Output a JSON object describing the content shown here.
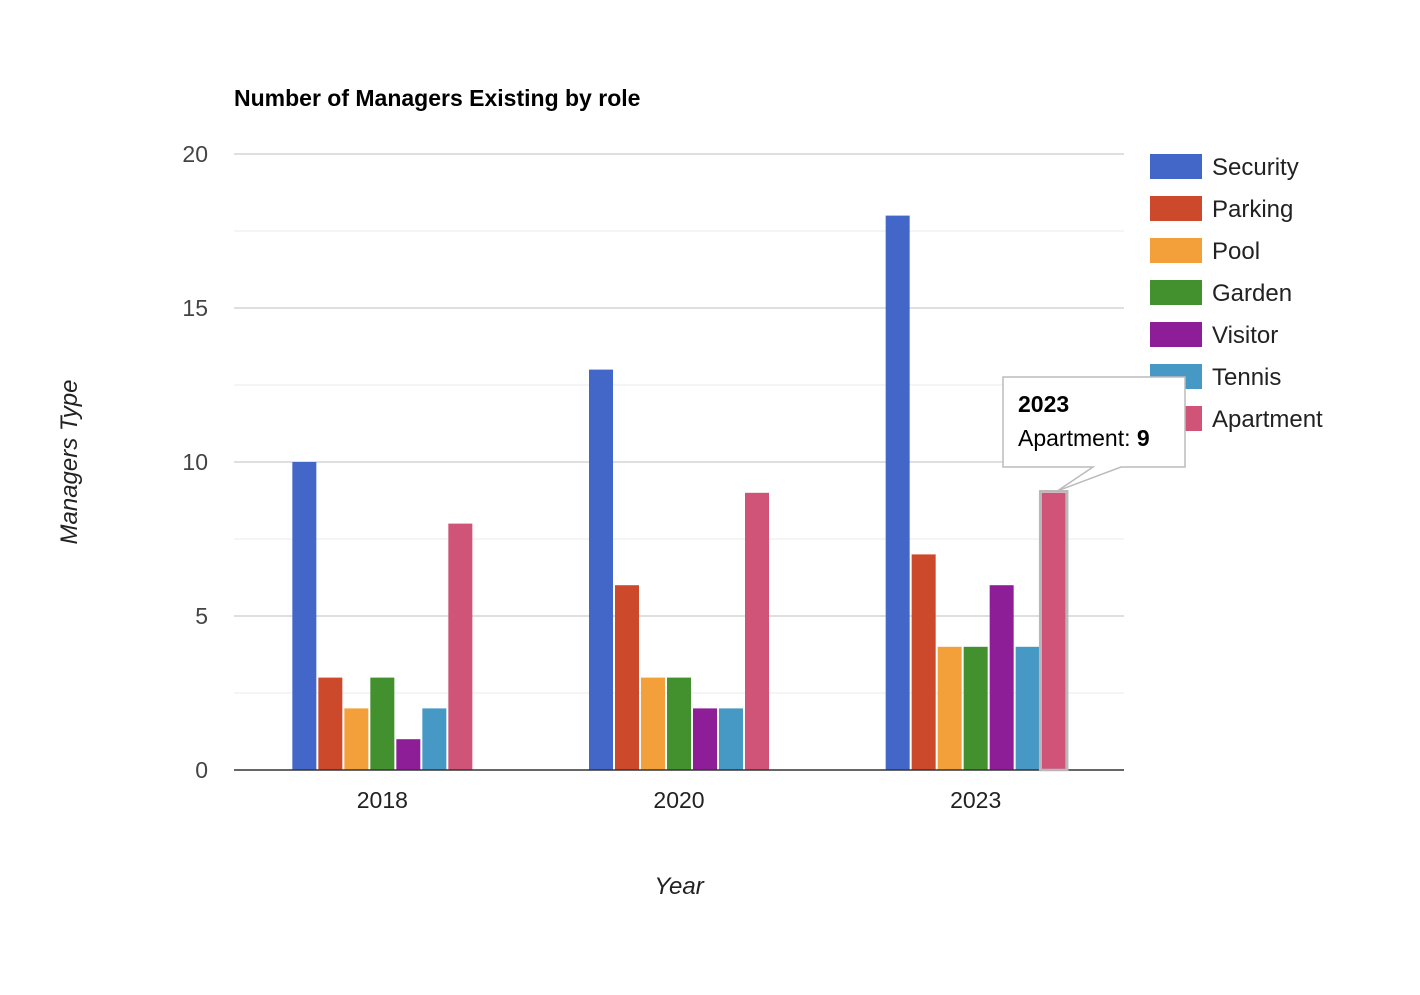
{
  "chart_data": {
    "type": "bar",
    "title": "Number of Managers Existing by role",
    "xlabel": "Year",
    "ylabel": "Managers Type",
    "categories": [
      "2018",
      "2020",
      "2023"
    ],
    "ylim": [
      0,
      20
    ],
    "yticks": [
      0,
      5,
      10,
      15,
      20
    ],
    "grid": true,
    "legend_position": "right",
    "series": [
      {
        "name": "Security",
        "color": "#4366C9",
        "values": [
          10,
          13,
          18
        ]
      },
      {
        "name": "Parking",
        "color": "#CC4A2B",
        "values": [
          3,
          6,
          7
        ]
      },
      {
        "name": "Pool",
        "color": "#F3A03A",
        "values": [
          2,
          3,
          4
        ]
      },
      {
        "name": "Garden",
        "color": "#43902F",
        "values": [
          3,
          3,
          4
        ]
      },
      {
        "name": "Visitor",
        "color": "#8E1E97",
        "values": [
          1,
          2,
          6
        ]
      },
      {
        "name": "Tennis",
        "color": "#4599C4",
        "values": [
          2,
          2,
          4
        ]
      },
      {
        "name": "Apartment",
        "color": "#CF5478",
        "values": [
          8,
          9,
          9
        ]
      }
    ],
    "tooltip": {
      "category": "2023",
      "series": "Apartment",
      "label": "Apartment: ",
      "value": "9"
    }
  }
}
